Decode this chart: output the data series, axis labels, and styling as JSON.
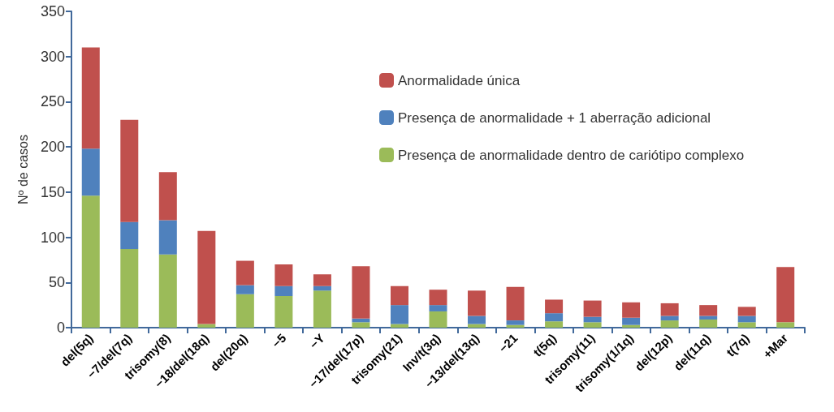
{
  "chart_data": {
    "type": "bar",
    "stacked": true,
    "ylabel": "Nº de casos",
    "categories": [
      "del(5q)",
      "−7/del(7q)",
      "trisomy(8)",
      "−18/del(18q)",
      "del(20q)",
      "−5",
      "−Y",
      "−17/del(17p)",
      "trisomy(21)",
      "Inv/t(3q)",
      "−13/del(13q)",
      "−21",
      "t(5q)",
      "trisomy(11)",
      "trisomy(1/1q)",
      "del(12p)",
      "del(11q)",
      "t(7q)",
      "+Mar"
    ],
    "series": [
      {
        "name": "Presença de anormalidade dentro de cariótipo complexo",
        "color": "#9bbb59",
        "values": [
          146,
          87,
          81,
          4,
          37,
          35,
          41,
          6,
          4,
          18,
          4,
          3,
          7,
          6,
          3,
          8,
          9,
          6,
          6
        ]
      },
      {
        "name": "Presença de anormalidade + 1 aberração adicional",
        "color": "#4f81bd",
        "values": [
          52,
          30,
          38,
          0,
          10,
          11,
          5,
          4,
          21,
          7,
          9,
          5,
          9,
          6,
          8,
          5,
          4,
          7,
          0
        ]
      },
      {
        "name": "Anormalidade única",
        "color": "#c0504d",
        "values": [
          112,
          113,
          53,
          103,
          27,
          24,
          13,
          58,
          21,
          17,
          28,
          37,
          15,
          18,
          17,
          14,
          12,
          10,
          61
        ]
      }
    ],
    "ylim": [
      0,
      350
    ],
    "yticks": [
      0,
      50,
      100,
      150,
      200,
      250,
      300,
      350
    ],
    "grid": false,
    "legend": "top right"
  }
}
